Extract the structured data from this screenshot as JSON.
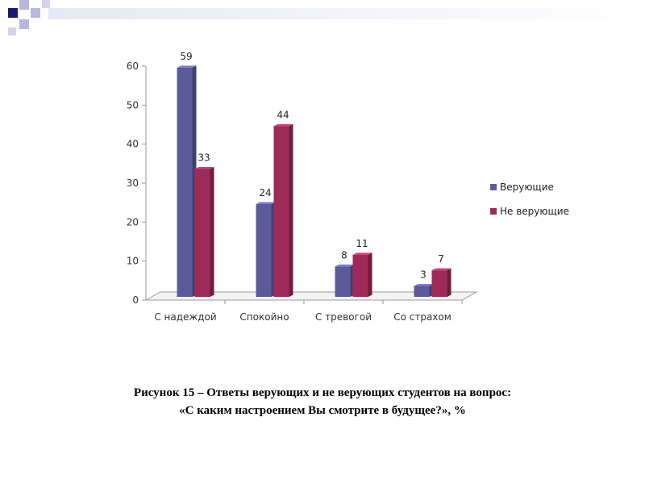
{
  "colors": {
    "series_believers": "#5b5b9c",
    "series_nonbelievers": "#9e2a5a",
    "header_dark": "#1b1b6e",
    "header_light": "#b8b8dc"
  },
  "chart_data": {
    "type": "bar",
    "title": "",
    "xlabel": "",
    "ylabel": "",
    "ylim": [
      0,
      60
    ],
    "yticks": [
      0,
      10,
      20,
      30,
      40,
      50,
      60
    ],
    "categories": [
      "С надеждой",
      "Спокойно",
      "С тревогой",
      "Со страхом"
    ],
    "series": [
      {
        "name": "Верующие",
        "values": [
          59,
          24,
          8,
          3
        ]
      },
      {
        "name": "Не верующие",
        "values": [
          33,
          44,
          11,
          7
        ]
      }
    ],
    "legend_position": "right",
    "grid": false
  },
  "caption": {
    "line1": "Рисунок 15 – Ответы верующих и не верующих студентов на вопрос:",
    "line2": "«С каким настроением Вы смотрите в будущее?», %"
  }
}
